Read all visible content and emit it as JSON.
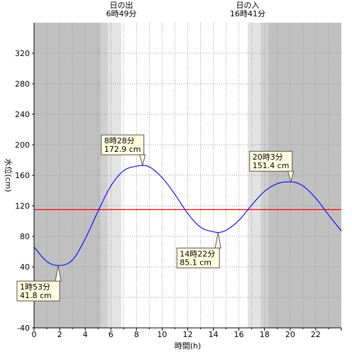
{
  "chart_data": {
    "type": "line",
    "xlabel": "時間(h)",
    "ylabel": "水位(cm)",
    "xlim": [
      0,
      24
    ],
    "ylim": [
      -40,
      360
    ],
    "x_ticks": [
      0,
      2,
      4,
      6,
      8,
      10,
      12,
      14,
      16,
      18,
      20,
      22
    ],
    "y_ticks": [
      -40,
      0,
      40,
      80,
      120,
      160,
      200,
      240,
      280,
      320
    ],
    "grid": true,
    "colors": {
      "night": "#c0c0c0",
      "twilight_outer": "#d0d0d0",
      "twilight_inner": "#e3e3e3",
      "day": "#ffffff",
      "tide_line": "#0000ff",
      "reference_line": "#ff0000",
      "annotation_bg": "#ffffe0"
    },
    "sunrise": {
      "label": "日の出",
      "time": "6時49分",
      "hour": 6.817
    },
    "sunset": {
      "label": "日の入",
      "time": "16時41分",
      "hour": 16.683
    },
    "twilight": {
      "dawn_start": 5.2,
      "dawn_mid": 5.75,
      "dusk_mid": 17.7,
      "dusk_end": 18.3
    },
    "reference_level": 115,
    "series": [
      {
        "x": [
          0,
          1,
          1.883,
          3,
          4,
          5,
          6,
          7,
          8,
          8.467,
          9,
          10,
          11,
          12,
          13,
          14,
          14.367,
          15,
          16,
          17,
          18,
          19,
          20.05,
          21,
          22,
          23,
          24
        ],
        "values": [
          66,
          47,
          41.8,
          49,
          77,
          113,
          146,
          166,
          172,
          172.9,
          171,
          157,
          135,
          110,
          92,
          86,
          85.1,
          88,
          101,
          121,
          139,
          149,
          151.4,
          146,
          130,
          108,
          87
        ]
      }
    ],
    "annotations": [
      {
        "time": "1時53分",
        "value": "41.8 cm",
        "x": 1.883,
        "y": 41.8,
        "side": "below"
      },
      {
        "time": "8時28分",
        "value": "172.9 cm",
        "x": 8.467,
        "y": 172.9,
        "side": "above"
      },
      {
        "time": "14時22分",
        "value": "85.1 cm",
        "x": 14.367,
        "y": 85.1,
        "side": "below"
      },
      {
        "time": "20時3分",
        "value": "151.4 cm",
        "x": 20.05,
        "y": 151.4,
        "side": "above"
      }
    ]
  }
}
